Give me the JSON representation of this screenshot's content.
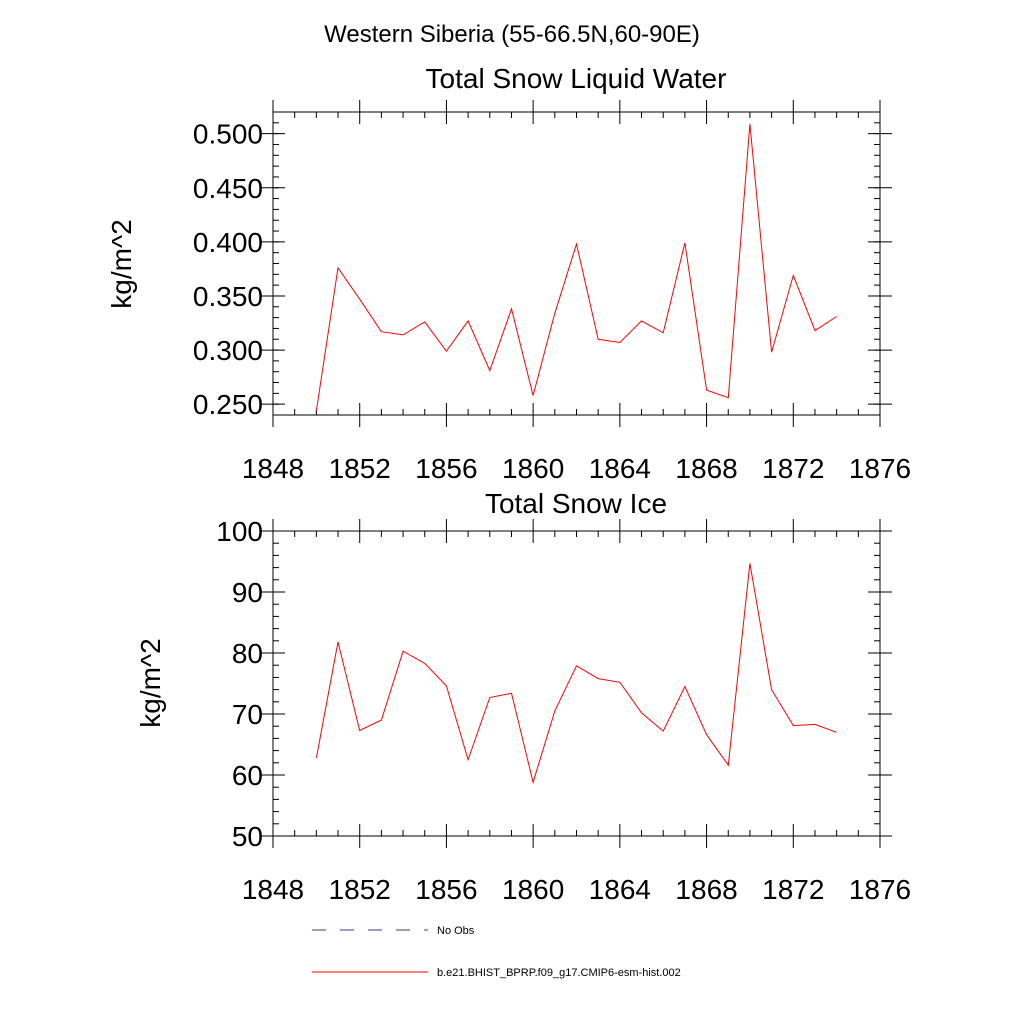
{
  "figure": {
    "title": "Western Siberia (55-66.5N,60-90E)"
  },
  "legend": {
    "items": [
      {
        "label": "No Obs",
        "color": "#3a3a8c",
        "dash": "dashed"
      },
      {
        "label": "b.e21.BHIST_BPRP.f09_g17.CMIP6-esm-hist.002",
        "color": "#ff0000",
        "dash": "solid"
      }
    ]
  },
  "chart_data": [
    {
      "type": "line",
      "title": "Total Snow Liquid Water",
      "xlabel": "",
      "ylabel": "kg/m^2",
      "xlim": [
        1848,
        1876
      ],
      "ylim": [
        0.24,
        0.52
      ],
      "xticks": [
        "1848",
        "1852",
        "1856",
        "1860",
        "1864",
        "1868",
        "1872",
        "1876"
      ],
      "yticks": [
        "0.250",
        "0.300",
        "0.350",
        "0.400",
        "0.450",
        "0.500"
      ],
      "grid": false,
      "series": [
        {
          "name": "b.e21.BHIST_BPRP.f09_g17.CMIP6-esm-hist.002",
          "color": "#ff0000",
          "x": [
            1850,
            1851,
            1852,
            1853,
            1854,
            1855,
            1856,
            1857,
            1858,
            1859,
            1860,
            1861,
            1862,
            1863,
            1864,
            1865,
            1866,
            1867,
            1868,
            1869,
            1870,
            1871,
            1872,
            1873,
            1874
          ],
          "y": [
            0.244,
            0.376,
            0.347,
            0.317,
            0.314,
            0.326,
            0.299,
            0.327,
            0.281,
            0.338,
            0.258,
            0.334,
            0.398,
            0.31,
            0.307,
            0.327,
            0.316,
            0.399,
            0.263,
            0.256,
            0.509,
            0.298,
            0.369,
            0.318,
            0.331
          ]
        }
      ]
    },
    {
      "type": "line",
      "title": "Total Snow Ice",
      "xlabel": "",
      "ylabel": "kg/m^2",
      "xlim": [
        1848,
        1876
      ],
      "ylim": [
        50,
        100
      ],
      "xticks": [
        "1848",
        "1852",
        "1856",
        "1860",
        "1864",
        "1868",
        "1872",
        "1876"
      ],
      "yticks": [
        "50",
        "60",
        "70",
        "80",
        "90",
        "100"
      ],
      "grid": false,
      "series": [
        {
          "name": "b.e21.BHIST_BPRP.f09_g17.CMIP6-esm-hist.002",
          "color": "#ff0000",
          "x": [
            1850,
            1851,
            1852,
            1853,
            1854,
            1855,
            1856,
            1857,
            1858,
            1859,
            1860,
            1861,
            1862,
            1863,
            1864,
            1865,
            1866,
            1867,
            1868,
            1869,
            1870,
            1871,
            1872,
            1873,
            1874
          ],
          "y": [
            62.8,
            81.8,
            67.3,
            69.0,
            80.3,
            78.3,
            74.6,
            62.5,
            72.7,
            73.4,
            58.8,
            70.5,
            77.9,
            75.8,
            75.2,
            70.2,
            67.2,
            74.5,
            66.6,
            61.6,
            94.7,
            74.0,
            68.1,
            68.3,
            67.0
          ]
        }
      ]
    }
  ]
}
